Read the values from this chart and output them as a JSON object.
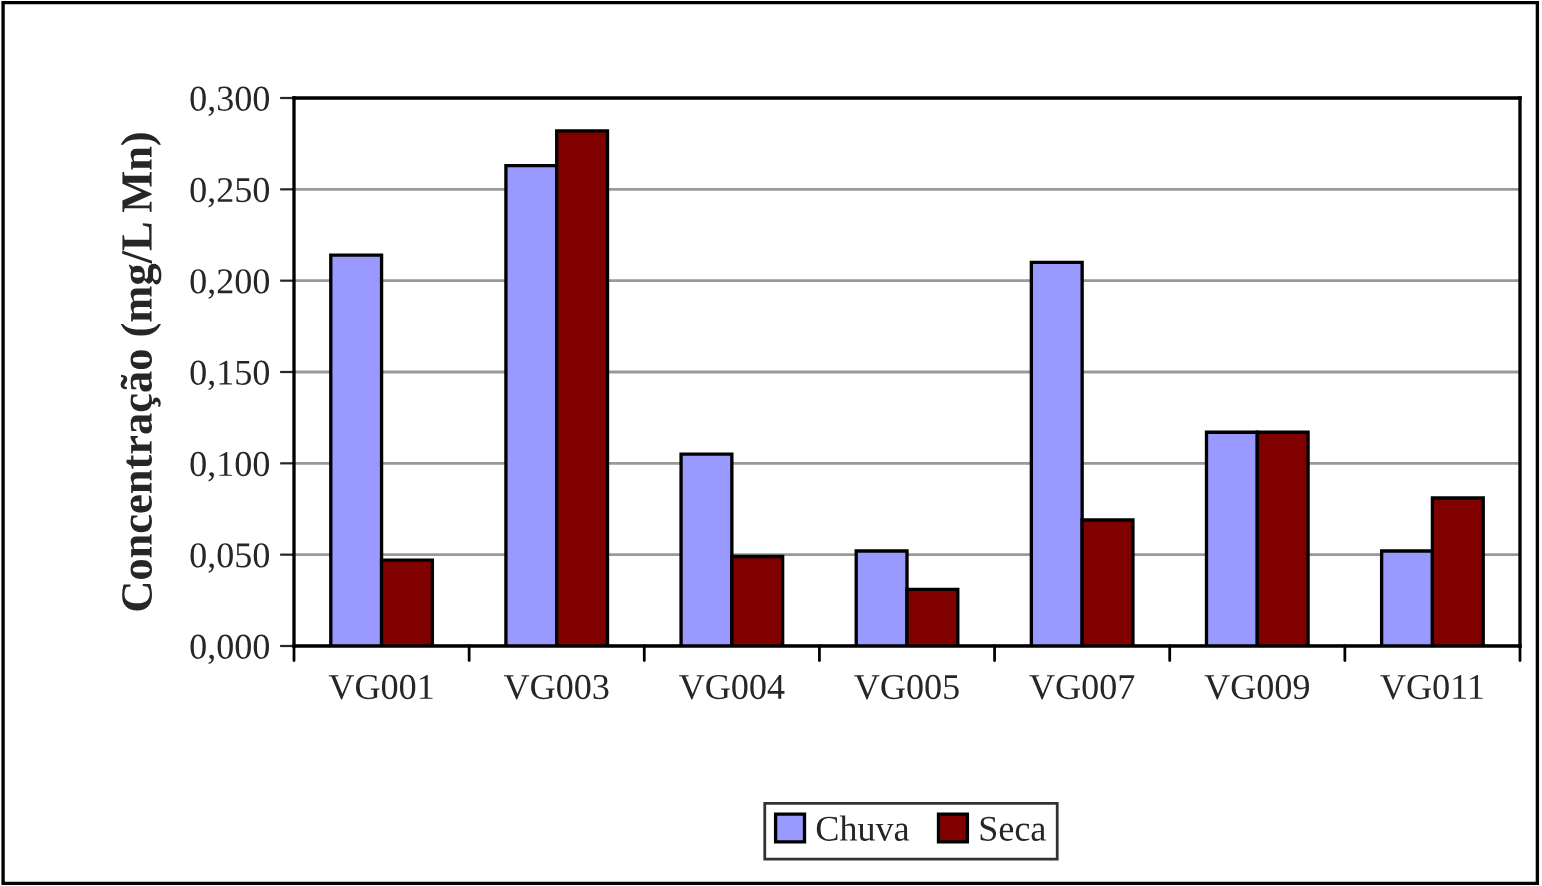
{
  "chart_data": {
    "type": "bar",
    "ylabel": "Concentração (mg/L Mn)",
    "categories": [
      "VG001",
      "VG003",
      "VG004",
      "VG005",
      "VG007",
      "VG009",
      "VG011"
    ],
    "series": [
      {
        "name": "Chuva",
        "color": "#9999ff",
        "values": [
          0.214,
          0.263,
          0.105,
          0.052,
          0.21,
          0.117,
          0.052
        ]
      },
      {
        "name": "Seca",
        "color": "#800000",
        "values": [
          0.047,
          0.282,
          0.049,
          0.031,
          0.069,
          0.117,
          0.081
        ]
      }
    ],
    "ylim": [
      0,
      0.3
    ],
    "yticks": [
      {
        "value": 0,
        "label": "0,000"
      },
      {
        "value": 0.05,
        "label": "0,050"
      },
      {
        "value": 0.1,
        "label": "0,100"
      },
      {
        "value": 0.15,
        "label": "0,150"
      },
      {
        "value": 0.2,
        "label": "0,200"
      },
      {
        "value": 0.25,
        "label": "0,250"
      },
      {
        "value": 0.3,
        "label": "0,300"
      }
    ],
    "grid": "y",
    "legend": "bottom"
  }
}
